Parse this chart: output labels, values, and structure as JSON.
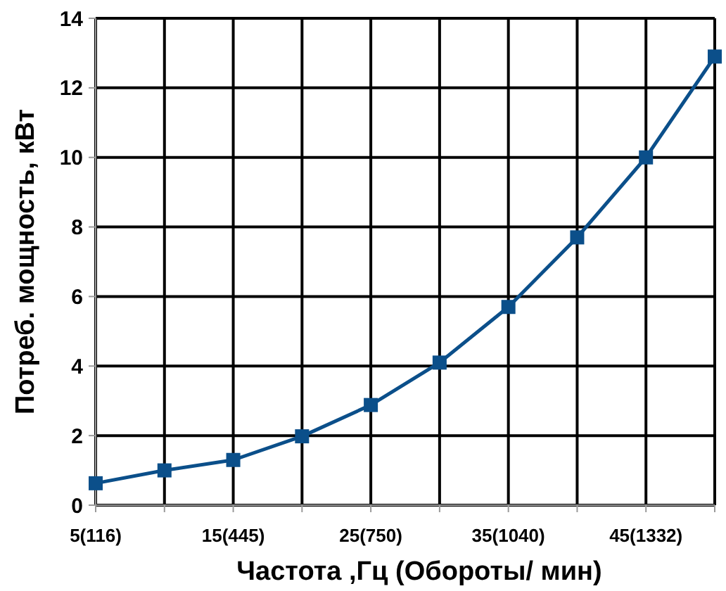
{
  "chart_data": {
    "type": "line",
    "xlabel": "Частота ,Гц (Обороты/ мин)",
    "ylabel": "Потреб. мощность, кВт",
    "categories": [
      "5(116)",
      null,
      "15(445)",
      null,
      "25(750)",
      null,
      "35(1040)",
      null,
      "45(1332)",
      null
    ],
    "values": [
      0.63,
      1.0,
      1.3,
      1.98,
      2.88,
      4.1,
      5.7,
      7.7,
      10.0,
      12.9
    ],
    "color": "#0b4f8a",
    "marker": "square",
    "line_style": "solid",
    "ylim": [
      0,
      14
    ],
    "yticks": [
      0,
      2,
      4,
      6,
      8,
      10,
      12,
      14
    ],
    "grid": true
  }
}
